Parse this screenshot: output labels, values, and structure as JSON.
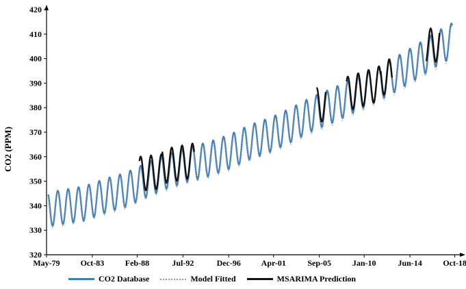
{
  "chart_data": {
    "type": "line",
    "title": "",
    "xlabel": "",
    "ylabel": "CO2 (PPM)",
    "ylim": [
      320,
      420
    ],
    "yticks": [
      320,
      330,
      340,
      350,
      360,
      370,
      380,
      390,
      400,
      410,
      420
    ],
    "xlim": [
      1979.33,
      2019.5
    ],
    "x_tick_labels": [
      {
        "label": "May-79",
        "x": 1979.33
      },
      {
        "label": "Oct-83",
        "x": 1983.75
      },
      {
        "label": "Feb-88",
        "x": 1988.08
      },
      {
        "label": "Jul-92",
        "x": 1992.5
      },
      {
        "label": "Dec-96",
        "x": 1996.92
      },
      {
        "label": "Apr-01",
        "x": 2001.25
      },
      {
        "label": "Sep-05",
        "x": 2005.67
      },
      {
        "label": "Jan-10",
        "x": 2010.0
      },
      {
        "label": "Jun-14",
        "x": 2014.42
      },
      {
        "label": "Oct-18",
        "x": 2018.75
      }
    ],
    "grid": false,
    "legend_position": "bottom",
    "seasonal_amplitude": 7,
    "seasonal_peak_month": 5,
    "series": [
      {
        "name": "CO2 Database",
        "color": "#3a7fc4",
        "style": "solid",
        "x": [
          1979.5,
          1981,
          1983,
          1985,
          1987,
          1989,
          1991,
          1993,
          1995,
          1997,
          1999,
          2001,
          2003,
          2005,
          2007,
          2009,
          2011,
          2013,
          2015,
          2017,
          2018.5
        ],
        "y": [
          338.5,
          339.5,
          341.0,
          344.0,
          346.5,
          350.5,
          354.0,
          356.8,
          359.0,
          362.0,
          366.0,
          369.0,
          373.0,
          377.5,
          381.0,
          385.0,
          389.0,
          393.5,
          398.5,
          404.0,
          407.5
        ]
      },
      {
        "name": "Model Fitted",
        "color": "#9a9a9a",
        "style": "dotted",
        "x": [
          1979.5,
          1981,
          1983,
          1985,
          1987,
          1989,
          1991,
          1993,
          1995,
          1997,
          1999,
          2001,
          2003,
          2005,
          2007,
          2009,
          2011,
          2013,
          2015,
          2017,
          2018.5
        ],
        "y": [
          338.3,
          339.3,
          340.8,
          343.8,
          346.3,
          350.3,
          353.8,
          356.6,
          358.8,
          361.8,
          365.8,
          368.8,
          372.8,
          377.0,
          380.5,
          384.5,
          388.5,
          393.0,
          398.0,
          403.5,
          407.0
        ]
      },
      {
        "name": "MSARIMA Prediction",
        "color": "#111111",
        "style": "solid",
        "segments": [
          {
            "x": [
              1988.3,
              1990.5
            ],
            "y": [
              353.0,
              354.0
            ]
          },
          {
            "x": [
              1990.5,
              1993.6
            ],
            "y": [
              356.0,
              358.5
            ]
          },
          {
            "x": [
              2005.4,
              2006.3
            ],
            "y": [
              381.0,
              381.5
            ]
          },
          {
            "x": [
              2008.3,
              2011.6
            ],
            "y": [
              385.5,
              390.0
            ]
          },
          {
            "x": [
              2011.6,
              2012.7
            ],
            "y": [
              392.0,
              393.0
            ]
          },
          {
            "x": [
              2016.0,
              2017.3
            ],
            "y": [
              405.0,
              406.0
            ]
          }
        ]
      }
    ]
  },
  "legend": [
    {
      "label": "CO2 Database",
      "color": "#3a7fc4",
      "style": "solid"
    },
    {
      "label": "Model Fitted",
      "color": "#9a9a9a",
      "style": "dotted"
    },
    {
      "label": "MSARIMA Prediction",
      "color": "#111111",
      "style": "solid"
    }
  ]
}
